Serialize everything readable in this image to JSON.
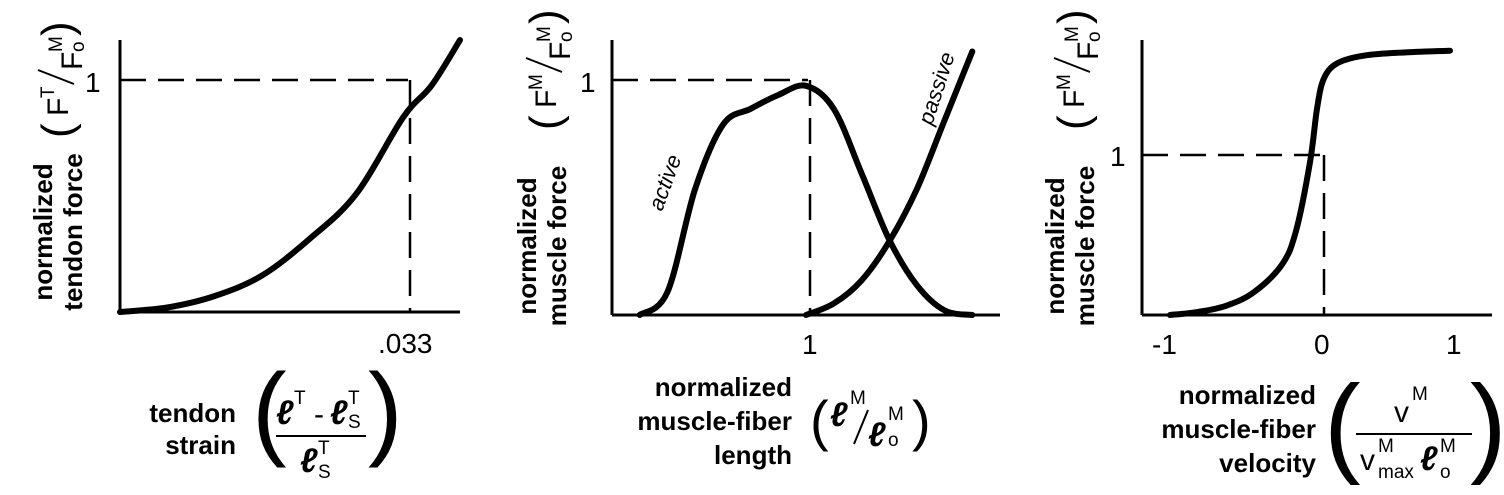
{
  "chart_data": [
    {
      "type": "line",
      "title": "",
      "xlabel": "tendon strain",
      "ylabel": "normalized tendon force",
      "y_tick_labels": [
        "1"
      ],
      "x_tick_labels": [
        ".033"
      ],
      "reference_point": {
        "x": 0.033,
        "y": 1
      },
      "series": [
        {
          "x": [
            0,
            0.005,
            0.01,
            0.015,
            0.02,
            0.025,
            0.03,
            0.033,
            0.036
          ],
          "y": [
            0,
            0.02,
            0.07,
            0.16,
            0.32,
            0.52,
            0.86,
            1.0,
            1.2
          ]
        }
      ],
      "xlim": [
        0,
        0.036
      ],
      "ylim": [
        0,
        1.2
      ]
    },
    {
      "type": "line",
      "title": "",
      "xlabel": "normalized muscle-fiber length",
      "ylabel": "normalized muscle force",
      "x_tick_labels": [
        "1"
      ],
      "y_tick_labels": [
        "1"
      ],
      "reference_point": {
        "x": 1,
        "y": 1
      },
      "series": [
        {
          "name": "active",
          "x": [
            0.4,
            0.5,
            0.6,
            0.7,
            0.8,
            0.9,
            1.0,
            1.1,
            1.2,
            1.3,
            1.4,
            1.5,
            1.6
          ],
          "y": [
            0,
            0.1,
            0.55,
            0.83,
            0.9,
            0.96,
            1.0,
            0.9,
            0.62,
            0.33,
            0.13,
            0.02,
            0
          ]
        },
        {
          "name": "passive",
          "x": [
            1.0,
            1.1,
            1.2,
            1.3,
            1.4,
            1.5,
            1.6
          ],
          "y": [
            0,
            0.05,
            0.15,
            0.32,
            0.55,
            0.85,
            1.15
          ]
        }
      ],
      "xlim": [
        0.3,
        1.7
      ],
      "ylim": [
        0,
        1.2
      ]
    },
    {
      "type": "line",
      "title": "",
      "xlabel": "normalized muscle-fiber velocity",
      "ylabel": "normalized muscle force",
      "x_tick_labels": [
        "-1",
        "0",
        "1"
      ],
      "y_tick_labels": [
        "1"
      ],
      "reference_point": {
        "x": 0,
        "y": 1
      },
      "series": [
        {
          "x": [
            -1,
            -0.8,
            -0.6,
            -0.4,
            -0.2,
            -0.1,
            0,
            0.05,
            0.1,
            0.2,
            0.4,
            0.7,
            1
          ],
          "y": [
            0,
            0.02,
            0.06,
            0.15,
            0.33,
            0.55,
            1.0,
            1.35,
            1.55,
            1.65,
            1.7,
            1.72,
            1.73
          ]
        }
      ],
      "xlim": [
        -1.2,
        1.3
      ],
      "ylim": [
        0,
        1.8
      ]
    }
  ],
  "labels": {
    "p1_ylabel_1": "normalized",
    "p1_ylabel_2": "tendon force",
    "p1_xlabel_1": "tendon",
    "p1_xlabel_2": "strain",
    "p2_ylabel_1": "normalized",
    "p2_ylabel_2": "muscle force",
    "p2_xlabel_1": "normalized",
    "p2_xlabel_2": "muscle-fiber",
    "p2_xlabel_3": "length",
    "p2_active": "active",
    "p2_passive": "passive",
    "p3_ylabel_1": "normalized",
    "p3_ylabel_2": "muscle force",
    "p3_xlabel_1": "normalized",
    "p3_xlabel_2": "muscle-fiber",
    "p3_xlabel_3": "velocity",
    "p1_tick_y": "1",
    "p1_tick_x": ".033",
    "p2_tick_y": "1",
    "p2_tick_x": "1",
    "p3_tick_y": "1",
    "p3_tick_x1": "-1",
    "p3_tick_x2": "0",
    "p3_tick_x3": "1"
  },
  "formulas": {
    "F": "F",
    "T": "T",
    "M": "M",
    "o": "o",
    "ell": "ℓ",
    "S": "S",
    "minus": "-",
    "v": "v",
    "max": "max"
  }
}
